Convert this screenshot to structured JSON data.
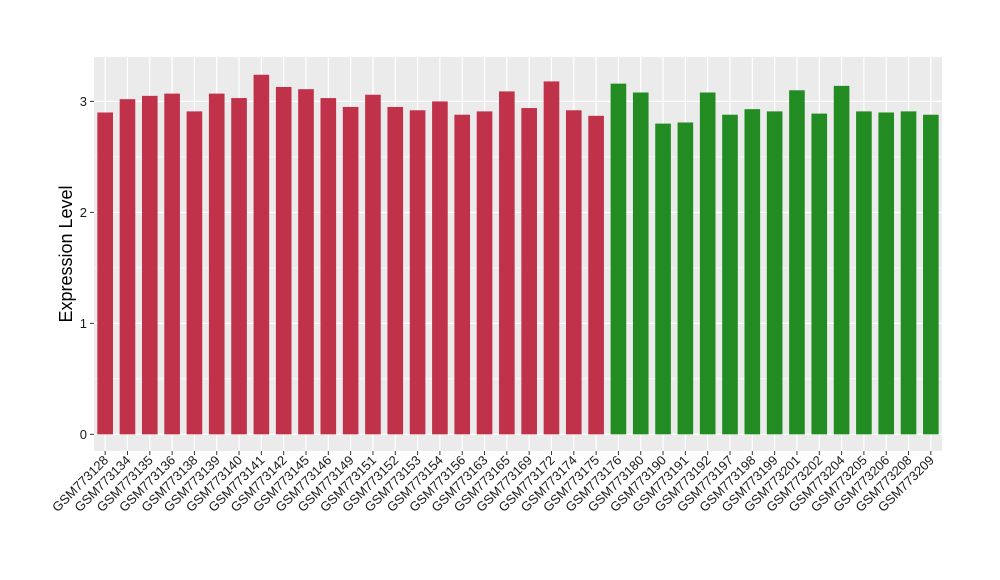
{
  "chart_data": {
    "type": "bar",
    "title": "",
    "xlabel": "",
    "ylabel": "Expression Level",
    "ylim": [
      -0.15,
      3.4
    ],
    "yticks": [
      0,
      1,
      2,
      3
    ],
    "grid": true,
    "legend": "none",
    "colors": {
      "panel_background": "#ebebeb",
      "grid": "#ffffff",
      "group_1": "#c0314a",
      "group_2": "#228b22"
    },
    "categories": [
      "GSM773128",
      "GSM773134",
      "GSM773135",
      "GSM773136",
      "GSM773138",
      "GSM773139",
      "GSM773140",
      "GSM773141",
      "GSM773142",
      "GSM773145",
      "GSM773146",
      "GSM773149",
      "GSM773151",
      "GSM773152",
      "GSM773153",
      "GSM773154",
      "GSM773156",
      "GSM773163",
      "GSM773165",
      "GSM773169",
      "GSM773172",
      "GSM773174",
      "GSM773175",
      "GSM773176",
      "GSM773180",
      "GSM773190",
      "GSM773191",
      "GSM773192",
      "GSM773197",
      "GSM773198",
      "GSM773199",
      "GSM773201",
      "GSM773202",
      "GSM773204",
      "GSM773205",
      "GSM773206",
      "GSM773208",
      "GSM773209"
    ],
    "values": [
      2.9,
      3.02,
      3.05,
      3.07,
      2.91,
      3.07,
      3.03,
      3.24,
      3.13,
      3.11,
      3.03,
      2.95,
      3.06,
      2.95,
      2.92,
      3.0,
      2.88,
      2.91,
      3.09,
      2.94,
      3.18,
      2.92,
      2.87,
      3.16,
      3.08,
      2.8,
      2.81,
      3.08,
      2.88,
      2.93,
      2.91,
      3.1,
      2.89,
      3.14,
      2.91,
      2.9,
      2.91,
      2.88
    ],
    "groups": [
      1,
      1,
      1,
      1,
      1,
      1,
      1,
      1,
      1,
      1,
      1,
      1,
      1,
      1,
      1,
      1,
      1,
      1,
      1,
      1,
      1,
      1,
      1,
      2,
      2,
      2,
      2,
      2,
      2,
      2,
      2,
      2,
      2,
      2,
      2,
      2,
      2,
      2
    ]
  }
}
